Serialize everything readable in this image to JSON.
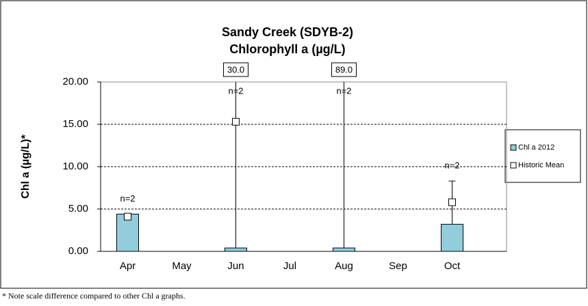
{
  "chart_data": {
    "type": "bar",
    "title": [
      "Sandy Creek (SDYB-2)",
      "Chlorophyll a (µg/L)"
    ],
    "y_label": "Chl a (µg/L)*",
    "footnote": "* Note scale difference compared to other Chl a graphs.",
    "categories": [
      "Apr",
      "May",
      "Jun",
      "Jul",
      "Aug",
      "Sep",
      "Oct"
    ],
    "series": [
      {
        "name": "Chl a 2012",
        "color": "#92cddc",
        "values": [
          4.4,
          null,
          0.4,
          null,
          0.4,
          null,
          3.2
        ]
      },
      {
        "name": "Historic Mean",
        "color": "#ffffff",
        "values": [
          4.1,
          null,
          15.3,
          null,
          null,
          null,
          5.8
        ],
        "error_high": [
          null,
          null,
          30.0,
          null,
          89.0,
          null,
          8.3
        ],
        "error_low": [
          null,
          null,
          0.4,
          null,
          0.4,
          null,
          3.2
        ],
        "error_high_labels": [
          null,
          null,
          "30.0",
          null,
          "89.0",
          null,
          null
        ]
      }
    ],
    "n_labels": [
      "n=2",
      null,
      "n=2",
      null,
      "n=2",
      null,
      "n=2"
    ],
    "ylim": [
      0,
      20
    ],
    "yticks": [
      {
        "value": 0,
        "label": "0.00"
      },
      {
        "value": 5,
        "label": "5.00"
      },
      {
        "value": 10,
        "label": "10.00"
      },
      {
        "value": 15,
        "label": "15.00"
      },
      {
        "value": 20,
        "label": "20.00"
      }
    ],
    "grid": true,
    "legend": "right"
  }
}
